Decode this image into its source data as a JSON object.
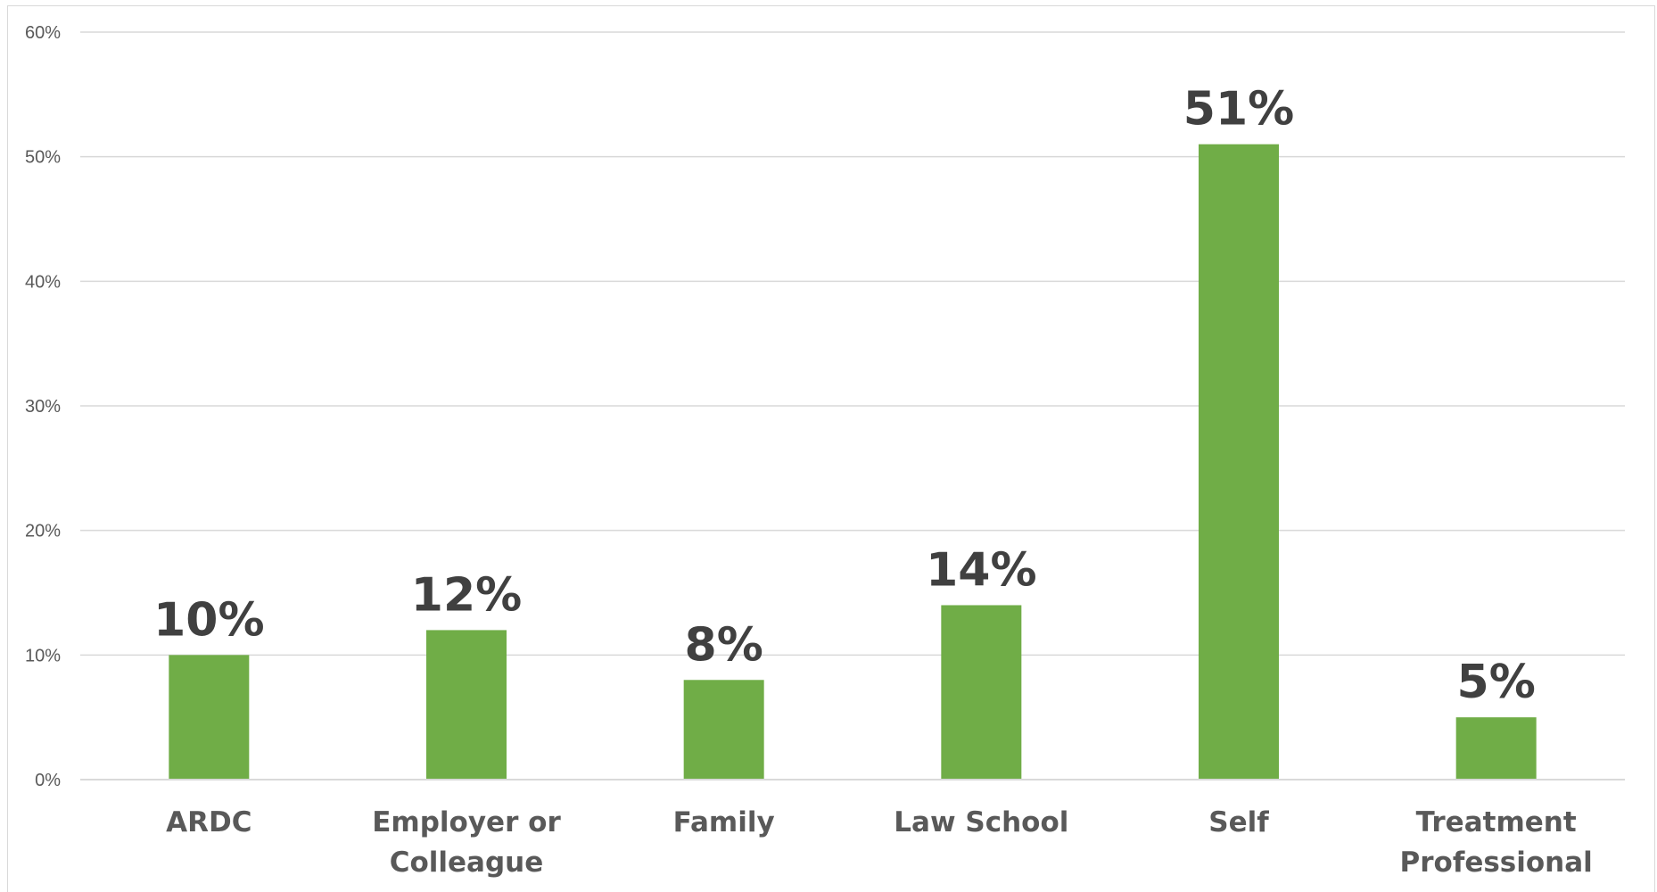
{
  "chart_data": {
    "type": "bar",
    "categories": [
      "ARDC",
      "Employer or Colleague",
      "Family",
      "Law School",
      "Self",
      "Treatment Professional"
    ],
    "category_lines": [
      [
        "ARDC"
      ],
      [
        "Employer or",
        "Colleague"
      ],
      [
        "Family"
      ],
      [
        "Law School"
      ],
      [
        "Self"
      ],
      [
        "Treatment",
        "Professional"
      ]
    ],
    "values": [
      10,
      12,
      8,
      14,
      51,
      5
    ],
    "data_labels": [
      "10%",
      "12%",
      "8%",
      "14%",
      "51%",
      "5%"
    ],
    "yticks": [
      "0%",
      "10%",
      "20%",
      "30%",
      "40%",
      "50%",
      "60%"
    ],
    "ylim": [
      0,
      60
    ],
    "title": "",
    "xlabel": "",
    "ylabel": "",
    "grid": true,
    "legend": "none",
    "colors": {
      "bar": "#70ad47",
      "grid": "#d9d9d9",
      "data_label": "#404040",
      "axis_text": "#595959"
    }
  }
}
